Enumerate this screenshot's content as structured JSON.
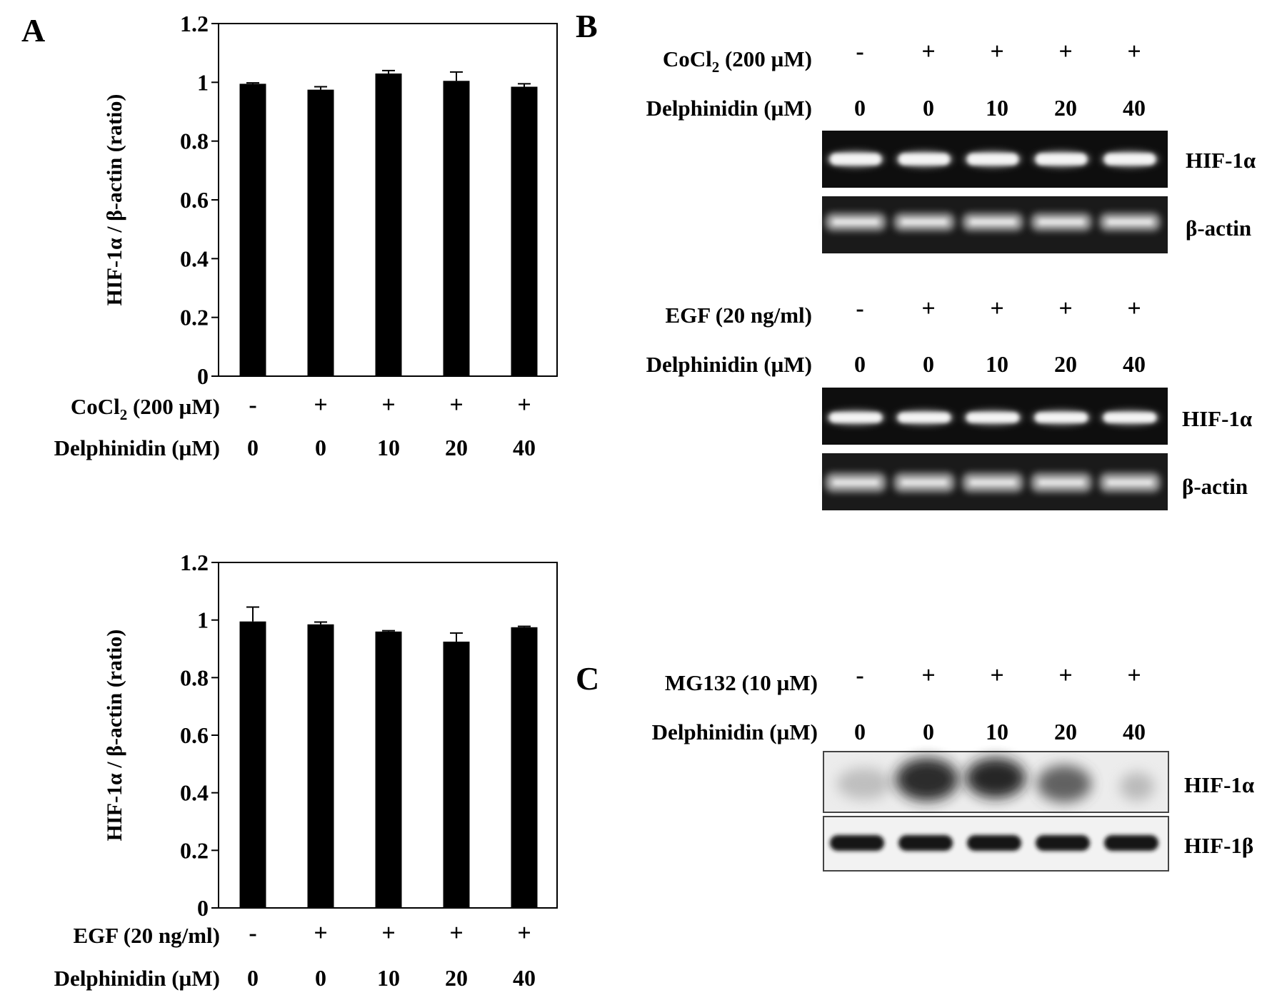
{
  "panels": {
    "A": "A",
    "B": "B",
    "C": "C"
  },
  "treatments": {
    "cocl2": {
      "prefix": "CoCl",
      "sub": "2",
      "suffix": " (200 µM)"
    },
    "egf": "EGF (20 ng/ml)",
    "mg132": "MG132 (10 µM)",
    "delphinidin": "Delphinidin (µM)"
  },
  "lanes": {
    "signs": [
      "-",
      "+",
      "+",
      "+",
      "+"
    ],
    "doses": [
      "0",
      "0",
      "10",
      "20",
      "40"
    ]
  },
  "blot_labels": {
    "hif1a": "HIF-1α",
    "bactin": "β-actin",
    "hif1b": "HIF-1β"
  },
  "chart_data": [
    {
      "type": "bar",
      "panel": "A",
      "treatment": "CoCl2 (200 µM)",
      "ylabel": "HIF-1α / β-actin (ratio)",
      "ylim": [
        0,
        1.2
      ],
      "yticks": [
        "0",
        "0.2",
        "0.4",
        "0.6",
        "0.8",
        "1",
        "1.2"
      ],
      "categories": [
        "-/0",
        "+/0",
        "+/10",
        "+/20",
        "+/40"
      ],
      "values": [
        0.995,
        0.975,
        1.03,
        1.005,
        0.985
      ],
      "errors": [
        0.003,
        0.01,
        0.01,
        0.03,
        0.01
      ],
      "grid": false,
      "color": "#000000"
    },
    {
      "type": "bar",
      "panel": "A",
      "treatment": "EGF (20 ng/ml)",
      "ylabel": "HIF-1α / β-actin (ratio)",
      "ylim": [
        0,
        1.2
      ],
      "yticks": [
        "0",
        "0.2",
        "0.4",
        "0.6",
        "0.8",
        "1",
        "1.2"
      ],
      "categories": [
        "-/0",
        "+/0",
        "+/10",
        "+/20",
        "+/40"
      ],
      "values": [
        0.995,
        0.985,
        0.96,
        0.925,
        0.975
      ],
      "errors": [
        0.05,
        0.008,
        0.003,
        0.03,
        0.003
      ],
      "grid": false,
      "color": "#000000"
    }
  ]
}
